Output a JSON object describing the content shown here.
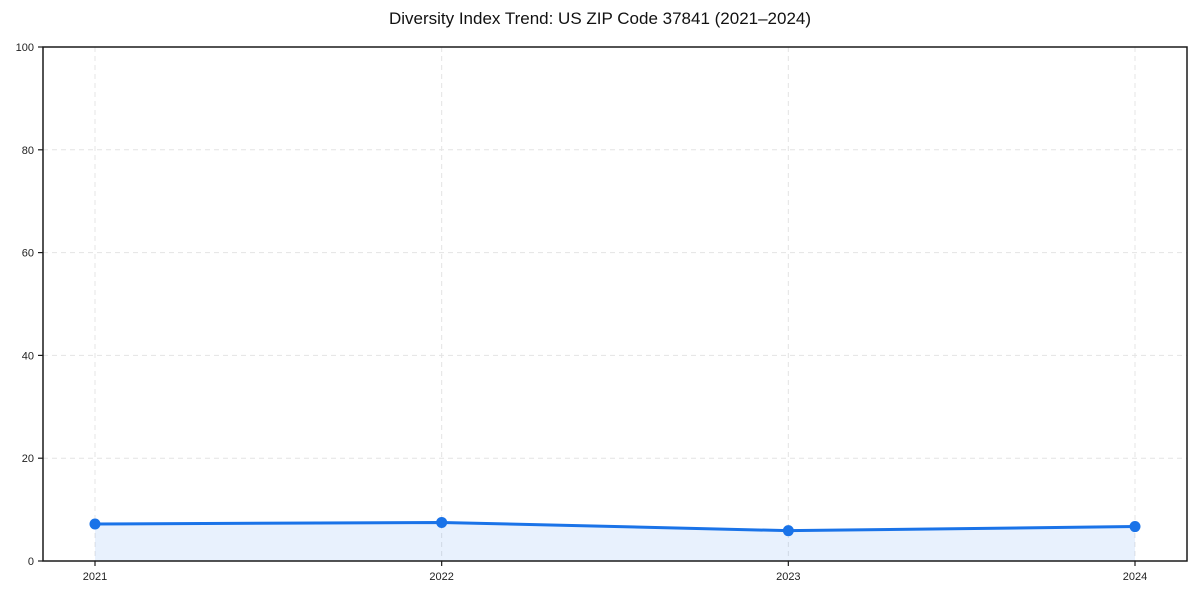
{
  "chart_data": {
    "type": "line",
    "title": "Diversity Index Trend: US ZIP Code 37841 (2021–2024)",
    "x": [
      2021,
      2022,
      2023,
      2024
    ],
    "series": [
      {
        "name": "Diversity Index",
        "values": [
          7.2,
          7.5,
          5.9,
          6.7
        ]
      }
    ],
    "xlabel": "",
    "ylabel": "",
    "ylim": [
      0,
      100
    ],
    "yticks": [
      0,
      20,
      40,
      60,
      80,
      100
    ],
    "grid": true,
    "grid_style": "dashed",
    "legend_position": "none",
    "colors": {
      "line": "#1a73e8",
      "marker": "#1a73e8",
      "area_fill": "rgba(26,115,232,0.10)",
      "gridline": "#e4e4e4",
      "axis": "#1a1a1a",
      "tick_label": "#222222",
      "background": "#ffffff"
    },
    "area_fill_to_zero": true,
    "marker_shape": "circle"
  }
}
